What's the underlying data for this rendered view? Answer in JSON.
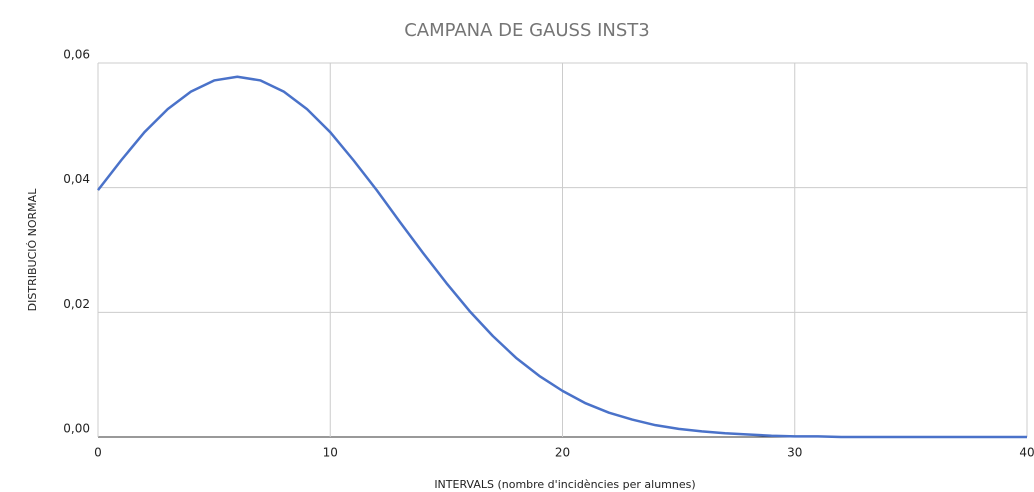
{
  "chart_data": {
    "type": "line",
    "title": "CAMPANA DE GAUSS INST3",
    "x_label": "INTERVALS (nombre d'incidències per alumnes)",
    "y_label": "DISTRIBUCIÓ NORMAL",
    "x": [
      0,
      1,
      2,
      3,
      4,
      5,
      6,
      7,
      8,
      9,
      10,
      11,
      12,
      13,
      14,
      15,
      16,
      17,
      18,
      19,
      20,
      21,
      22,
      23,
      24,
      25,
      26,
      27,
      28,
      29,
      30,
      31,
      32,
      33,
      34,
      35,
      36,
      37,
      38,
      39,
      40
    ],
    "series": [
      {
        "color": "#4a72c9",
        "values": [
          0.0396,
          0.0444,
          0.0489,
          0.0526,
          0.0554,
          0.0572,
          0.0578,
          0.0572,
          0.0554,
          0.0526,
          0.0489,
          0.0444,
          0.0396,
          0.0345,
          0.0295,
          0.0247,
          0.0202,
          0.0162,
          0.0127,
          0.0098,
          0.0074,
          0.0054,
          0.0039,
          0.0028,
          0.0019,
          0.0013,
          0.0009,
          0.0006,
          0.0004,
          0.0002,
          0.0001,
          0.0001,
          0,
          0,
          0,
          0,
          0,
          0,
          0,
          0,
          0
        ]
      }
    ],
    "xlim": [
      0,
      40
    ],
    "xticks": [
      0,
      10,
      20,
      30,
      40
    ],
    "ylim": [
      0,
      0.06
    ],
    "yticks": [
      {
        "value": 0,
        "label": "0,00"
      },
      {
        "value": 0.02,
        "label": "0,02"
      },
      {
        "value": 0.04,
        "label": "0,04"
      },
      {
        "value": 0.06,
        "label": "0,06"
      }
    ],
    "grid": true
  }
}
